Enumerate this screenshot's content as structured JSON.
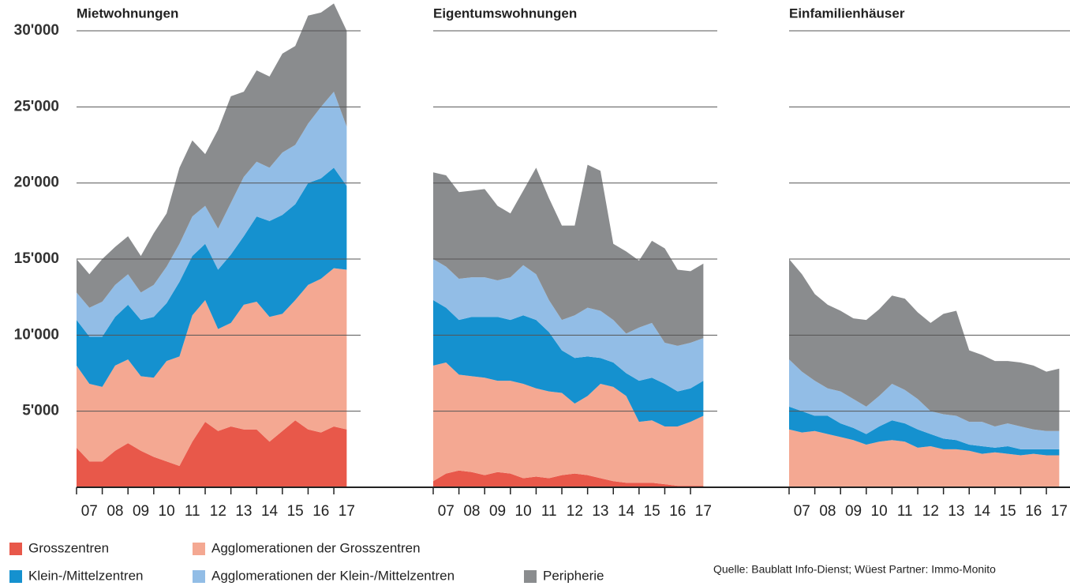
{
  "chart_data": [
    {
      "type": "stacked_area",
      "title": "Mietwohnungen",
      "x": [
        2007,
        2007.5,
        2008,
        2008.5,
        2009,
        2009.5,
        2010,
        2010.5,
        2011,
        2011.5,
        2012,
        2012.5,
        2013,
        2013.5,
        2014,
        2014.5,
        2015,
        2015.5,
        2016,
        2016.5,
        2017,
        2017.5
      ],
      "xlim": [
        2007,
        2017.55
      ],
      "xticks": [
        {
          "value": 2007,
          "label": "07"
        },
        {
          "value": 2008,
          "label": "08"
        },
        {
          "value": 2009,
          "label": "09"
        },
        {
          "value": 2010,
          "label": "10"
        },
        {
          "value": 2011,
          "label": "11"
        },
        {
          "value": 2012,
          "label": "12"
        },
        {
          "value": 2013,
          "label": "13"
        },
        {
          "value": 2014,
          "label": "14"
        },
        {
          "value": 2015,
          "label": "15"
        },
        {
          "value": 2016,
          "label": "16"
        },
        {
          "value": 2017,
          "label": "17"
        }
      ],
      "ylim": [
        0,
        32000
      ],
      "yticks": [
        {
          "value": 5000,
          "label": "5'000"
        },
        {
          "value": 10000,
          "label": "10'000"
        },
        {
          "value": 15000,
          "label": "15'000"
        },
        {
          "value": 20000,
          "label": "20'000"
        },
        {
          "value": 25000,
          "label": "25'000"
        },
        {
          "value": 30000,
          "label": "30'000"
        }
      ],
      "grid": true,
      "series": [
        {
          "name": "Grosszentren",
          "color": "#e8584a",
          "values": [
            2600,
            1700,
            1700,
            2400,
            2900,
            2400,
            2000,
            1700,
            1400,
            3000,
            4300,
            3700,
            4000,
            3800,
            3800,
            3000,
            3700,
            4400,
            3800,
            3600,
            4000,
            3800
          ]
        },
        {
          "name": "Agglomerationen der Grosszentren",
          "color": "#f4a892",
          "values": [
            5400,
            5100,
            4900,
            5600,
            5500,
            4900,
            5200,
            6600,
            7200,
            8300,
            8000,
            6700,
            6800,
            8200,
            8400,
            8200,
            7700,
            7900,
            9500,
            10100,
            10400,
            10500
          ]
        },
        {
          "name": "Klein-/Mittelzentren",
          "color": "#1591cf",
          "values": [
            3000,
            3100,
            3300,
            3200,
            3600,
            3700,
            4000,
            3800,
            4900,
            3900,
            3700,
            3900,
            4500,
            4500,
            5600,
            6300,
            6500,
            6300,
            6700,
            6600,
            6600,
            5500
          ]
        },
        {
          "name": "Agglomerationen der Klein-/Mittelzentren",
          "color": "#92bde6",
          "values": [
            1800,
            1900,
            2300,
            2100,
            2000,
            1800,
            2100,
            2400,
            2500,
            2600,
            2500,
            2700,
            3400,
            3900,
            3600,
            3500,
            4100,
            3900,
            3900,
            4700,
            5000,
            3900
          ]
        },
        {
          "name": "Peripherie",
          "color": "#8a8c8e",
          "values": [
            2200,
            2200,
            2800,
            2500,
            2500,
            2400,
            3400,
            3500,
            5000,
            5000,
            3400,
            6500,
            7000,
            5600,
            6000,
            6000,
            6500,
            6500,
            7100,
            6200,
            5800,
            6300
          ]
        }
      ]
    },
    {
      "type": "stacked_area",
      "title": "Eigentumswohnungen",
      "x": [
        2007,
        2007.5,
        2008,
        2008.5,
        2009,
        2009.5,
        2010,
        2010.5,
        2011,
        2011.5,
        2012,
        2012.5,
        2013,
        2013.5,
        2014,
        2014.5,
        2015,
        2015.5,
        2016,
        2016.5,
        2017,
        2017.5
      ],
      "xlim": [
        2007,
        2017.55
      ],
      "xticks": [
        {
          "value": 2007,
          "label": "07"
        },
        {
          "value": 2008,
          "label": "08"
        },
        {
          "value": 2009,
          "label": "09"
        },
        {
          "value": 2010,
          "label": "10"
        },
        {
          "value": 2011,
          "label": "11"
        },
        {
          "value": 2012,
          "label": "12"
        },
        {
          "value": 2013,
          "label": "13"
        },
        {
          "value": 2014,
          "label": "14"
        },
        {
          "value": 2015,
          "label": "15"
        },
        {
          "value": 2016,
          "label": "16"
        },
        {
          "value": 2017,
          "label": "17"
        }
      ],
      "ylim": [
        0,
        32000
      ],
      "grid": true,
      "series": [
        {
          "name": "Grosszentren",
          "color": "#e8584a",
          "values": [
            400,
            900,
            1100,
            1000,
            800,
            1000,
            900,
            600,
            700,
            600,
            800,
            900,
            800,
            600,
            400,
            300,
            300,
            300,
            200,
            100,
            100,
            100
          ]
        },
        {
          "name": "Agglomerationen der Grosszentren",
          "color": "#f4a892",
          "values": [
            7600,
            7300,
            6300,
            6300,
            6400,
            6000,
            6100,
            6200,
            5800,
            5700,
            5400,
            4600,
            5200,
            6200,
            6200,
            5700,
            4000,
            4100,
            3800,
            3900,
            4200,
            4600
          ]
        },
        {
          "name": "Klein-/Mittelzentren",
          "color": "#1591cf",
          "values": [
            4300,
            3600,
            3600,
            3900,
            4000,
            4200,
            4000,
            4500,
            4500,
            3900,
            2800,
            3000,
            2600,
            1700,
            1600,
            1500,
            2700,
            2800,
            2800,
            2300,
            2200,
            2300
          ]
        },
        {
          "name": "Agglomerationen der Klein-/Mittelzentren",
          "color": "#92bde6",
          "values": [
            2700,
            2700,
            2700,
            2600,
            2600,
            2400,
            2800,
            3300,
            3000,
            2100,
            2000,
            2800,
            3200,
            3100,
            2800,
            2600,
            3500,
            3600,
            2700,
            3000,
            3000,
            2800
          ]
        },
        {
          "name": "Peripherie",
          "color": "#8a8c8e",
          "values": [
            5700,
            6000,
            5700,
            5700,
            5800,
            4900,
            4200,
            4900,
            7000,
            6700,
            6200,
            5900,
            9400,
            9200,
            5000,
            5400,
            4400,
            5400,
            6200,
            5000,
            4700,
            4900
          ]
        }
      ]
    },
    {
      "type": "stacked_area",
      "title": "Einfamilienhäuser",
      "x": [
        2007,
        2007.5,
        2008,
        2008.5,
        2009,
        2009.5,
        2010,
        2010.5,
        2011,
        2011.5,
        2012,
        2012.5,
        2013,
        2013.5,
        2014,
        2014.5,
        2015,
        2015.5,
        2016,
        2016.5,
        2017,
        2017.5
      ],
      "xlim": [
        2007,
        2017.55
      ],
      "xticks": [
        {
          "value": 2007,
          "label": "07"
        },
        {
          "value": 2008,
          "label": "08"
        },
        {
          "value": 2009,
          "label": "09"
        },
        {
          "value": 2010,
          "label": "10"
        },
        {
          "value": 2011,
          "label": "11"
        },
        {
          "value": 2012,
          "label": "12"
        },
        {
          "value": 2013,
          "label": "13"
        },
        {
          "value": 2014,
          "label": "14"
        },
        {
          "value": 2015,
          "label": "15"
        },
        {
          "value": 2016,
          "label": "16"
        },
        {
          "value": 2017,
          "label": "17"
        }
      ],
      "ylim": [
        0,
        32000
      ],
      "grid": true,
      "series": [
        {
          "name": "Agglomerationen der Grosszentren",
          "color": "#f4a892",
          "values": [
            3800,
            3600,
            3700,
            3500,
            3300,
            3100,
            2800,
            3000,
            3100,
            3000,
            2600,
            2700,
            2500,
            2500,
            2400,
            2200,
            2300,
            2200,
            2100,
            2200,
            2100,
            2100
          ]
        },
        {
          "name": "Klein-/Mittelzentren",
          "color": "#1591cf",
          "values": [
            1500,
            1400,
            1000,
            1200,
            900,
            800,
            700,
            1000,
            1300,
            1200,
            1200,
            800,
            700,
            600,
            400,
            500,
            300,
            500,
            400,
            300,
            400,
            400
          ]
        },
        {
          "name": "Agglomerationen der Klein-/Mittelzentren",
          "color": "#92bde6",
          "values": [
            3100,
            2600,
            2300,
            1800,
            2100,
            1900,
            1800,
            2000,
            2400,
            2200,
            2000,
            1500,
            1600,
            1600,
            1500,
            1600,
            1400,
            1500,
            1500,
            1300,
            1200,
            1200
          ]
        },
        {
          "name": "Peripherie",
          "color": "#8a8c8e",
          "values": [
            6600,
            6400,
            5700,
            5500,
            5300,
            5300,
            5700,
            5700,
            5800,
            6000,
            5700,
            5800,
            6600,
            6900,
            4700,
            4400,
            4300,
            4100,
            4200,
            4200,
            3900,
            4100
          ]
        }
      ]
    }
  ],
  "source": "Quelle: Baublatt Info-Dienst; Wüest Partner: Immo-Monito"
}
